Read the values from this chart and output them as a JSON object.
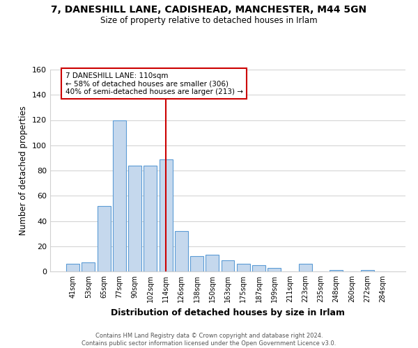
{
  "title": "7, DANESHILL LANE, CADISHEAD, MANCHESTER, M44 5GN",
  "subtitle": "Size of property relative to detached houses in Irlam",
  "xlabel": "Distribution of detached houses by size in Irlam",
  "ylabel": "Number of detached properties",
  "bar_labels": [
    "41sqm",
    "53sqm",
    "65sqm",
    "77sqm",
    "90sqm",
    "102sqm",
    "114sqm",
    "126sqm",
    "138sqm",
    "150sqm",
    "163sqm",
    "175sqm",
    "187sqm",
    "199sqm",
    "211sqm",
    "223sqm",
    "235sqm",
    "248sqm",
    "260sqm",
    "272sqm",
    "284sqm"
  ],
  "bar_values": [
    6,
    7,
    52,
    120,
    84,
    84,
    89,
    32,
    12,
    13,
    9,
    6,
    5,
    3,
    0,
    6,
    0,
    1,
    0,
    1,
    0
  ],
  "bar_color": "#c5d8ed",
  "bar_edge_color": "#5b9bd5",
  "vline_x": 6,
  "vline_color": "#cc0000",
  "ylim": [
    0,
    160
  ],
  "yticks": [
    0,
    20,
    40,
    60,
    80,
    100,
    120,
    140,
    160
  ],
  "annotation_title": "7 DANESHILL LANE: 110sqm",
  "annotation_line1": "← 58% of detached houses are smaller (306)",
  "annotation_line2": "40% of semi-detached houses are larger (213) →",
  "annotation_box_color": "#ffffff",
  "annotation_box_edge": "#cc0000",
  "footer_line1": "Contains HM Land Registry data © Crown copyright and database right 2024.",
  "footer_line2": "Contains public sector information licensed under the Open Government Licence v3.0.",
  "background_color": "#ffffff",
  "grid_color": "#d0d0d0"
}
